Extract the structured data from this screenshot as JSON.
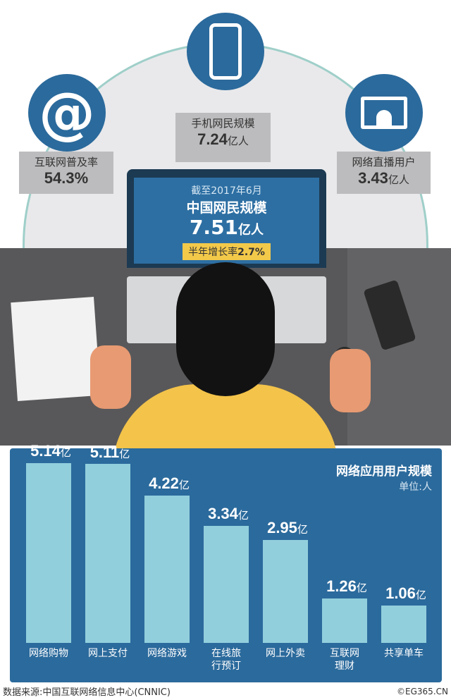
{
  "stats": {
    "penetration": {
      "label": "互联网普及率",
      "value": "54.3%"
    },
    "mobile": {
      "label": "手机网民规模",
      "value": "7.24",
      "unit": "亿人"
    },
    "live": {
      "label": "网络直播用户",
      "value": "3.43",
      "unit": "亿人"
    }
  },
  "screen": {
    "date": "截至2017年6月",
    "title": "中国网民规模",
    "value": "7.51",
    "unit": "亿人",
    "growth_label": "半年增长率",
    "growth_value": "2.7%"
  },
  "chart_data": {
    "type": "bar",
    "title": "网络应用用户规模",
    "subtitle": "单位:人",
    "categories": [
      "网络购物",
      "网上支付",
      "网络游戏",
      "在线旅行预订",
      "网上外卖",
      "互联网理财",
      "共享单车"
    ],
    "category_lines": [
      [
        "网络购物"
      ],
      [
        "网上支付"
      ],
      [
        "网络游戏"
      ],
      [
        "在线旅",
        "行预订"
      ],
      [
        "网上外卖"
      ],
      [
        "互联网",
        "理财"
      ],
      [
        "共享单车"
      ]
    ],
    "values": [
      5.14,
      5.11,
      4.22,
      3.34,
      2.95,
      1.26,
      1.06
    ],
    "value_labels": [
      "5.14",
      "5.11",
      "4.22",
      "3.34",
      "2.95",
      "1.26",
      "1.06"
    ],
    "value_unit": "亿",
    "ylim": [
      0,
      5.14
    ],
    "colors": {
      "bar": "#92cfdd",
      "panel": "#2b6a9c"
    }
  },
  "footer": {
    "source": "数据来源:中国互联网络信息中心(CNNIC)",
    "watermark": "©EG365.CN"
  }
}
